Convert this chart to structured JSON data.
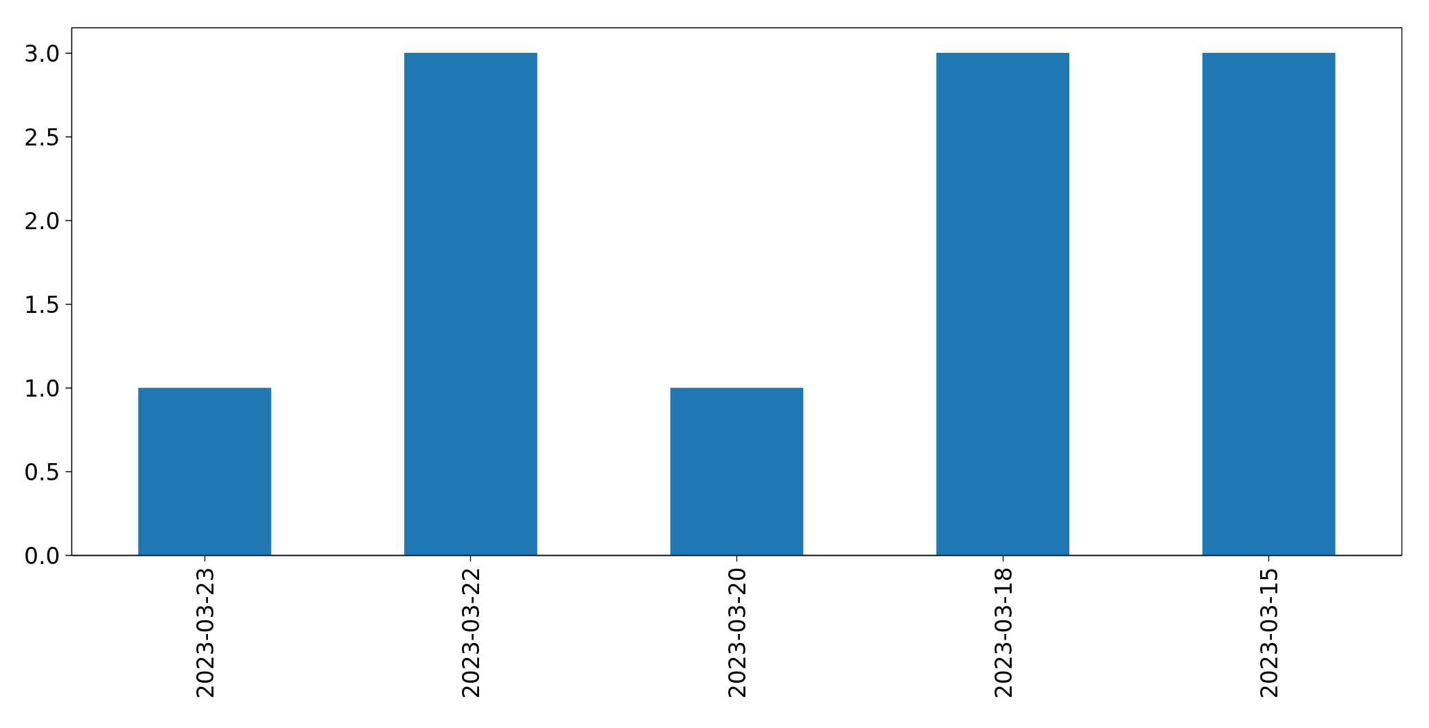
{
  "chart_data": {
    "type": "bar",
    "categories": [
      "2023-03-23",
      "2023-03-22",
      "2023-03-20",
      "2023-03-18",
      "2023-03-15"
    ],
    "values": [
      1,
      3,
      1,
      3,
      3
    ],
    "color": "#1f77b4",
    "ylim": [
      0,
      3.15
    ],
    "yticks": [
      {
        "value": 0,
        "label": "0.0"
      },
      {
        "value": 0.5,
        "label": "0.5"
      },
      {
        "value": 1,
        "label": "1.0"
      },
      {
        "value": 1.5,
        "label": "1.5"
      },
      {
        "value": 2,
        "label": "2.0"
      },
      {
        "value": 2.5,
        "label": "2.5"
      },
      {
        "value": 3,
        "label": "3.0"
      }
    ],
    "grid": false
  }
}
